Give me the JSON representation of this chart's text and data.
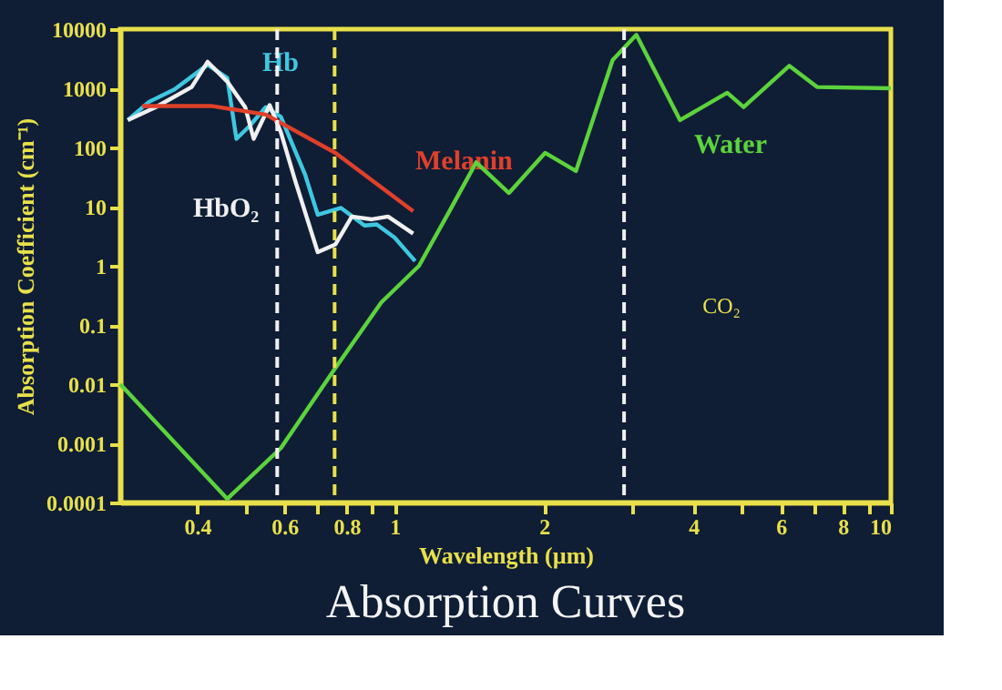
{
  "chart_data": {
    "type": "line",
    "title": "Absorption Curves",
    "xlabel": "Wavelength (µm)",
    "ylabel": "Absorption Coefficient (cm⁻¹)",
    "log": "xy",
    "grid": false,
    "marker": "none",
    "line_style": "solid",
    "xlim": [
      0.28,
      10
    ],
    "ylim": [
      0.0001,
      10000
    ],
    "xticks": [
      0.4,
      {
        "value": 0.5,
        "label": null
      },
      0.6,
      {
        "value": 0.7,
        "label": null
      },
      0.8,
      {
        "value": 0.9,
        "label": null
      },
      1,
      2,
      {
        "value": 3,
        "label": null
      },
      4,
      {
        "value": 5,
        "label": null
      },
      6,
      {
        "value": 7,
        "label": null
      },
      8,
      {
        "value": 9,
        "label": null
      },
      10
    ],
    "yticks": [
      {
        "value": 0.0001,
        "label": "0.0001"
      },
      {
        "value": 0.001,
        "label": "0.001"
      },
      {
        "value": 0.01,
        "label": "0.01"
      },
      {
        "value": 0.1,
        "label": "0.1"
      },
      1,
      10,
      100,
      1000,
      10000
    ],
    "series": [
      {
        "name": "Hb",
        "color": "#3ec8e0",
        "x": [
          0.29,
          0.32,
          0.36,
          0.42,
          0.46,
          0.48,
          0.51,
          0.55,
          0.59,
          0.66,
          0.7,
          0.78,
          0.87,
          0.92,
          1.0,
          1.1
        ],
        "values": [
          290,
          590,
          960,
          2500,
          1500,
          140,
          230,
          480,
          330,
          35,
          7.3,
          9.5,
          4.8,
          5,
          3,
          1.2
        ]
      },
      {
        "name": "HbO₂",
        "color": "#f0f0f0",
        "x": [
          0.29,
          0.33,
          0.39,
          0.42,
          0.46,
          0.5,
          0.52,
          0.56,
          0.59,
          0.63,
          0.7,
          0.76,
          0.82,
          0.9,
          0.97,
          1.09
        ],
        "values": [
          290,
          480,
          1050,
          2800,
          1300,
          480,
          140,
          520,
          180,
          28,
          1.7,
          2.3,
          6.8,
          6.1,
          6.8,
          3.5
        ]
      },
      {
        "name": "Melanin",
        "color": "#e0402a",
        "x": [
          0.31,
          0.43,
          0.55,
          0.76,
          1.09
        ],
        "values": [
          500,
          500,
          360,
          81,
          8.4
        ]
      },
      {
        "name": "Water",
        "color": "#5cd33c",
        "x": [
          0.28,
          0.46,
          0.59,
          0.757,
          0.94,
          1.12,
          1.29,
          1.46,
          1.7,
          2.01,
          2.32,
          2.75,
          3.07,
          3.76,
          4.68,
          5.05,
          6.24,
          7.1,
          10
        ],
        "values": [
          0.01,
          0.000115,
          0.00083,
          0.018,
          0.24,
          1,
          8.4,
          56,
          17,
          81,
          40,
          3000,
          8000,
          290,
          840,
          480,
          2400,
          1050,
          1000
        ]
      }
    ],
    "ref_lines": [
      {
        "axis": "x",
        "value": 0.58,
        "color": "#f0f0f0",
        "line_style": "dashed"
      },
      {
        "axis": "x",
        "value": 0.757,
        "color": "#e8e04a",
        "line_style": "dashed"
      },
      {
        "axis": "x",
        "value": 2.9,
        "color": "#f0f0f0",
        "line_style": "dashed"
      }
    ],
    "annotations": [
      "CO₂"
    ]
  }
}
